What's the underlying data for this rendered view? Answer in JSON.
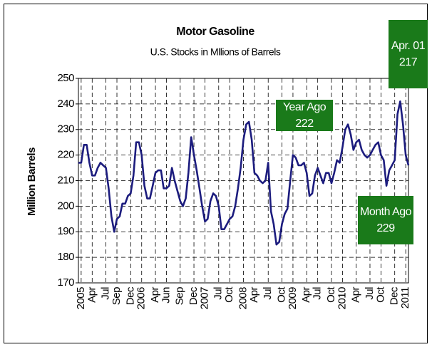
{
  "chart_data": {
    "type": "line",
    "title": "Motor Gasoline",
    "subtitle": "U.S. Stocks in Mllions of Barrels",
    "y_label": "Million Barrels",
    "categories": [
      null,
      "2005",
      null,
      null,
      null,
      "Apr",
      null,
      null,
      null,
      null,
      "Jul",
      null,
      null,
      null,
      "Sep",
      null,
      null,
      null,
      null,
      "Dec",
      null,
      null,
      null,
      "2006",
      null,
      null,
      null,
      null,
      "Apr",
      null,
      null,
      null,
      "Jun",
      null,
      null,
      null,
      null,
      "Sep",
      null,
      null,
      null,
      null,
      "Dec",
      null,
      null,
      null,
      "2007",
      null,
      null,
      null,
      null,
      "Jul",
      null,
      null,
      null,
      "Oct",
      null,
      null,
      null,
      null,
      "2008",
      null,
      null,
      null,
      "Apr",
      null,
      null,
      null,
      null,
      "Jul",
      null,
      null,
      null,
      null,
      "Oct",
      null,
      null,
      null,
      "2009",
      null,
      null,
      null,
      null,
      "Apr",
      null,
      null,
      null,
      "Jul",
      null,
      null,
      null,
      null,
      "Oct",
      null,
      null,
      null,
      "2010",
      null,
      null,
      null,
      null,
      "Apr",
      null,
      null,
      null,
      null,
      "Jul",
      null,
      null,
      null,
      "Oct",
      null,
      null,
      null,
      null,
      "Dec",
      null,
      null,
      null,
      "2011",
      null
    ],
    "series": [
      {
        "name": "Motor Gasoline",
        "color": "#1c1c7e",
        "values": [
          217,
          217,
          224,
          224,
          217,
          212,
          212,
          215,
          217,
          216,
          215,
          207,
          196,
          190,
          195,
          196,
          201,
          201,
          204,
          205,
          212,
          225,
          225,
          220,
          208,
          203,
          203,
          208,
          213,
          214,
          214,
          207,
          207,
          208,
          215,
          210,
          206,
          202,
          200,
          203,
          213,
          227,
          220,
          214,
          207,
          200,
          194,
          195,
          202,
          205,
          204,
          200,
          191,
          191,
          193,
          195,
          196,
          200,
          207,
          215,
          226,
          232,
          233,
          226,
          213,
          212,
          210,
          209,
          210,
          217,
          198,
          193,
          185,
          186,
          193,
          197,
          199,
          210,
          220,
          219,
          216,
          216,
          217,
          213,
          204,
          205,
          212,
          215,
          212,
          209,
          213,
          213,
          209,
          213,
          218,
          217,
          223,
          230,
          232,
          228,
          222,
          225,
          226,
          222,
          220,
          219,
          220,
          222,
          224,
          225,
          220,
          218,
          208,
          214,
          216,
          218,
          236,
          241,
          232,
          220,
          216
        ]
      }
    ],
    "ylim": [
      170,
      250
    ],
    "yticks": [
      170,
      180,
      190,
      200,
      210,
      220,
      230,
      240,
      250
    ],
    "grid": true,
    "annotations": [
      {
        "label": "Year Ago",
        "value": 222,
        "color": "#1a7a1a"
      },
      {
        "label": "Month Ago",
        "value": 229,
        "color": "#1a7a1a"
      },
      {
        "label": "Apr. 01",
        "value": 217,
        "color": "#1a7a1a"
      }
    ]
  }
}
